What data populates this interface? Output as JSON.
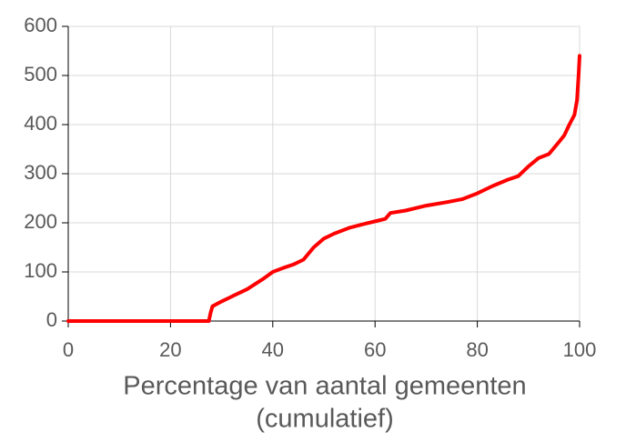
{
  "chart_data": {
    "type": "line",
    "x_label": [
      "Percentage van aantal gemeenten",
      "(cumulatief)"
    ],
    "x": [
      0,
      27.5,
      27.8,
      28.2,
      30,
      32,
      35,
      38,
      40,
      42,
      44,
      46,
      48,
      50,
      52,
      55,
      58,
      60,
      62,
      63,
      66,
      70,
      74,
      77,
      80,
      83,
      86,
      88,
      90,
      92,
      94,
      96,
      97,
      98,
      99,
      99.5,
      99.8,
      100
    ],
    "series": [
      {
        "color": "#ff0000",
        "values": [
          0,
          0,
          15,
          30,
          40,
          50,
          65,
          85,
          100,
          108,
          115,
          125,
          150,
          168,
          178,
          190,
          198,
          203,
          208,
          220,
          225,
          235,
          242,
          248,
          260,
          275,
          288,
          295,
          315,
          332,
          340,
          365,
          378,
          400,
          420,
          450,
          500,
          540
        ]
      }
    ],
    "xlim": [
      0,
      100
    ],
    "xticks": [
      0,
      20,
      40,
      60,
      80,
      100
    ],
    "ylim": [
      0,
      600
    ],
    "yticks": [
      0,
      100,
      200,
      300,
      400,
      500,
      600
    ],
    "grid": true
  }
}
